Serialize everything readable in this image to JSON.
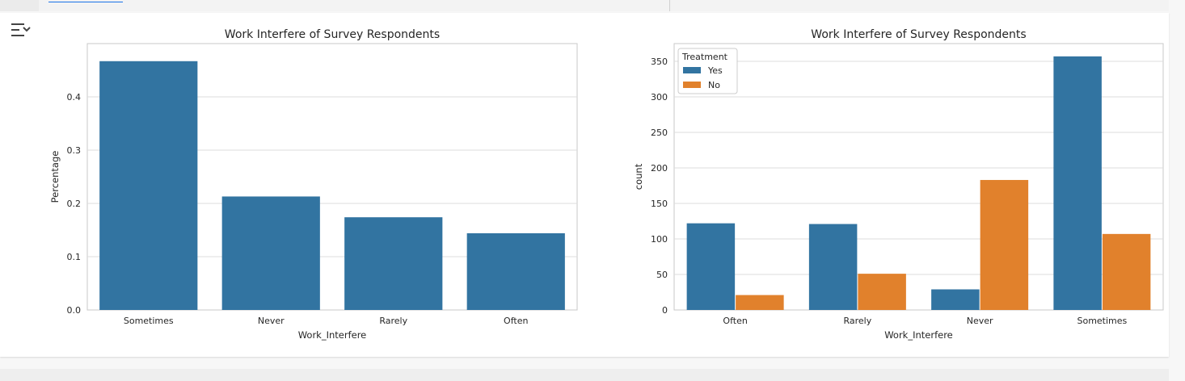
{
  "notebook": {
    "output_toggle_icon": "output-collapse-icon"
  },
  "colors": {
    "blue": "#3274a1",
    "orange": "#e1812c",
    "grid": "#dddddd",
    "axis": "#c8c8c8",
    "text": "#262626"
  },
  "chart_data": [
    {
      "type": "bar",
      "title": "Work Interfere of Survey Respondents",
      "xlabel": "Work_Interfere",
      "ylabel": "Percentage",
      "categories": [
        "Sometimes",
        "Never",
        "Rarely",
        "Often"
      ],
      "values": [
        0.467,
        0.213,
        0.174,
        0.144
      ],
      "ylim": [
        0,
        0.5
      ],
      "yticks": [
        0.0,
        0.1,
        0.2,
        0.3,
        0.4
      ],
      "ytick_labels": [
        "0.0",
        "0.1",
        "0.2",
        "0.3",
        "0.4"
      ],
      "grid": true
    },
    {
      "type": "bar",
      "title": "Work Interfere of Survey Respondents",
      "xlabel": "Work_Interfere",
      "ylabel": "count",
      "categories": [
        "Often",
        "Rarely",
        "Never",
        "Sometimes"
      ],
      "series": [
        {
          "name": "Yes",
          "values": [
            122,
            121,
            29,
            357
          ]
        },
        {
          "name": "No",
          "values": [
            21,
            51,
            183,
            107
          ]
        }
      ],
      "ylim": [
        0,
        375
      ],
      "yticks": [
        0,
        50,
        100,
        150,
        200,
        250,
        300,
        350
      ],
      "ytick_labels": [
        "0",
        "50",
        "100",
        "150",
        "200",
        "250",
        "300",
        "350"
      ],
      "legend": {
        "title": "Treatment",
        "position": "top-left"
      },
      "grid": true
    }
  ]
}
